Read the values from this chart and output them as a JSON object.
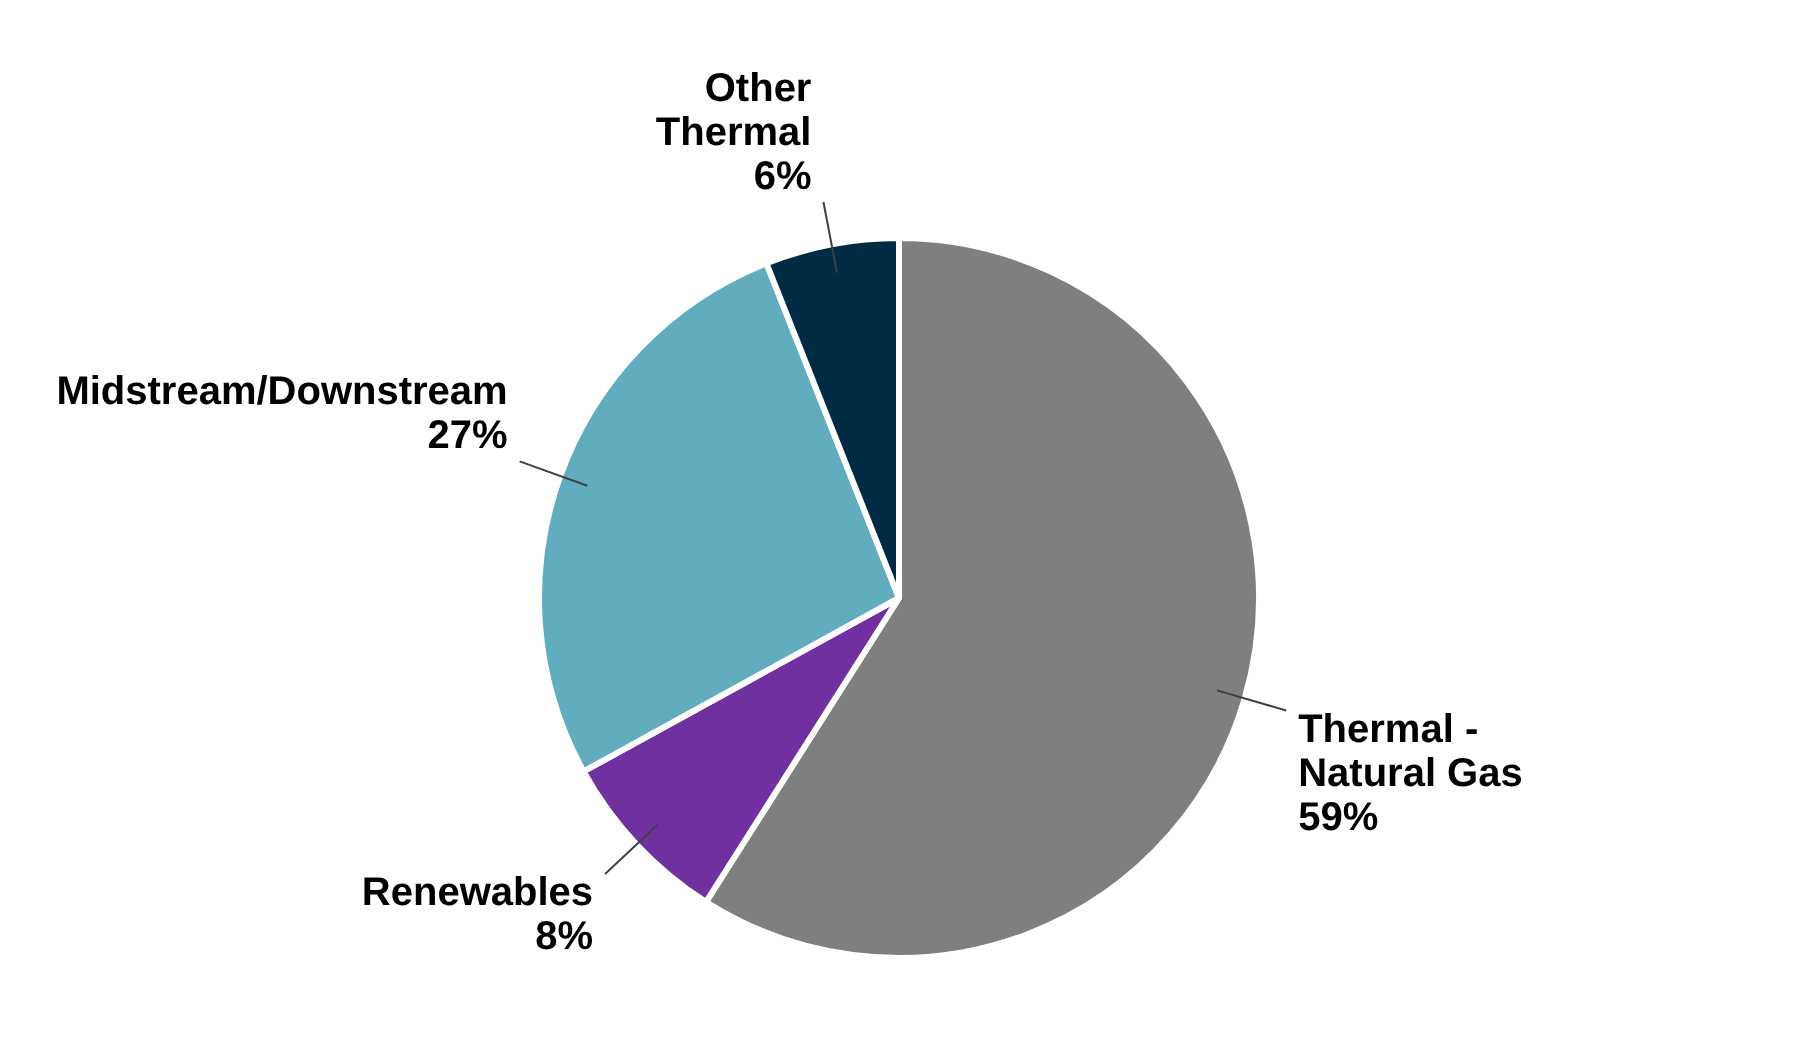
{
  "chart_data": {
    "type": "pie",
    "categories": [
      "Thermal - Natural Gas",
      "Renewables",
      "Midstream/Downstream",
      "Other Thermal"
    ],
    "values": [
      59,
      8,
      27,
      6
    ],
    "colors": [
      "#7f7f7f",
      "#7030a0",
      "#62acbf",
      "#002b45"
    ],
    "value_labels": [
      "59%",
      "8%",
      "27%",
      "6%"
    ],
    "legend": false
  }
}
